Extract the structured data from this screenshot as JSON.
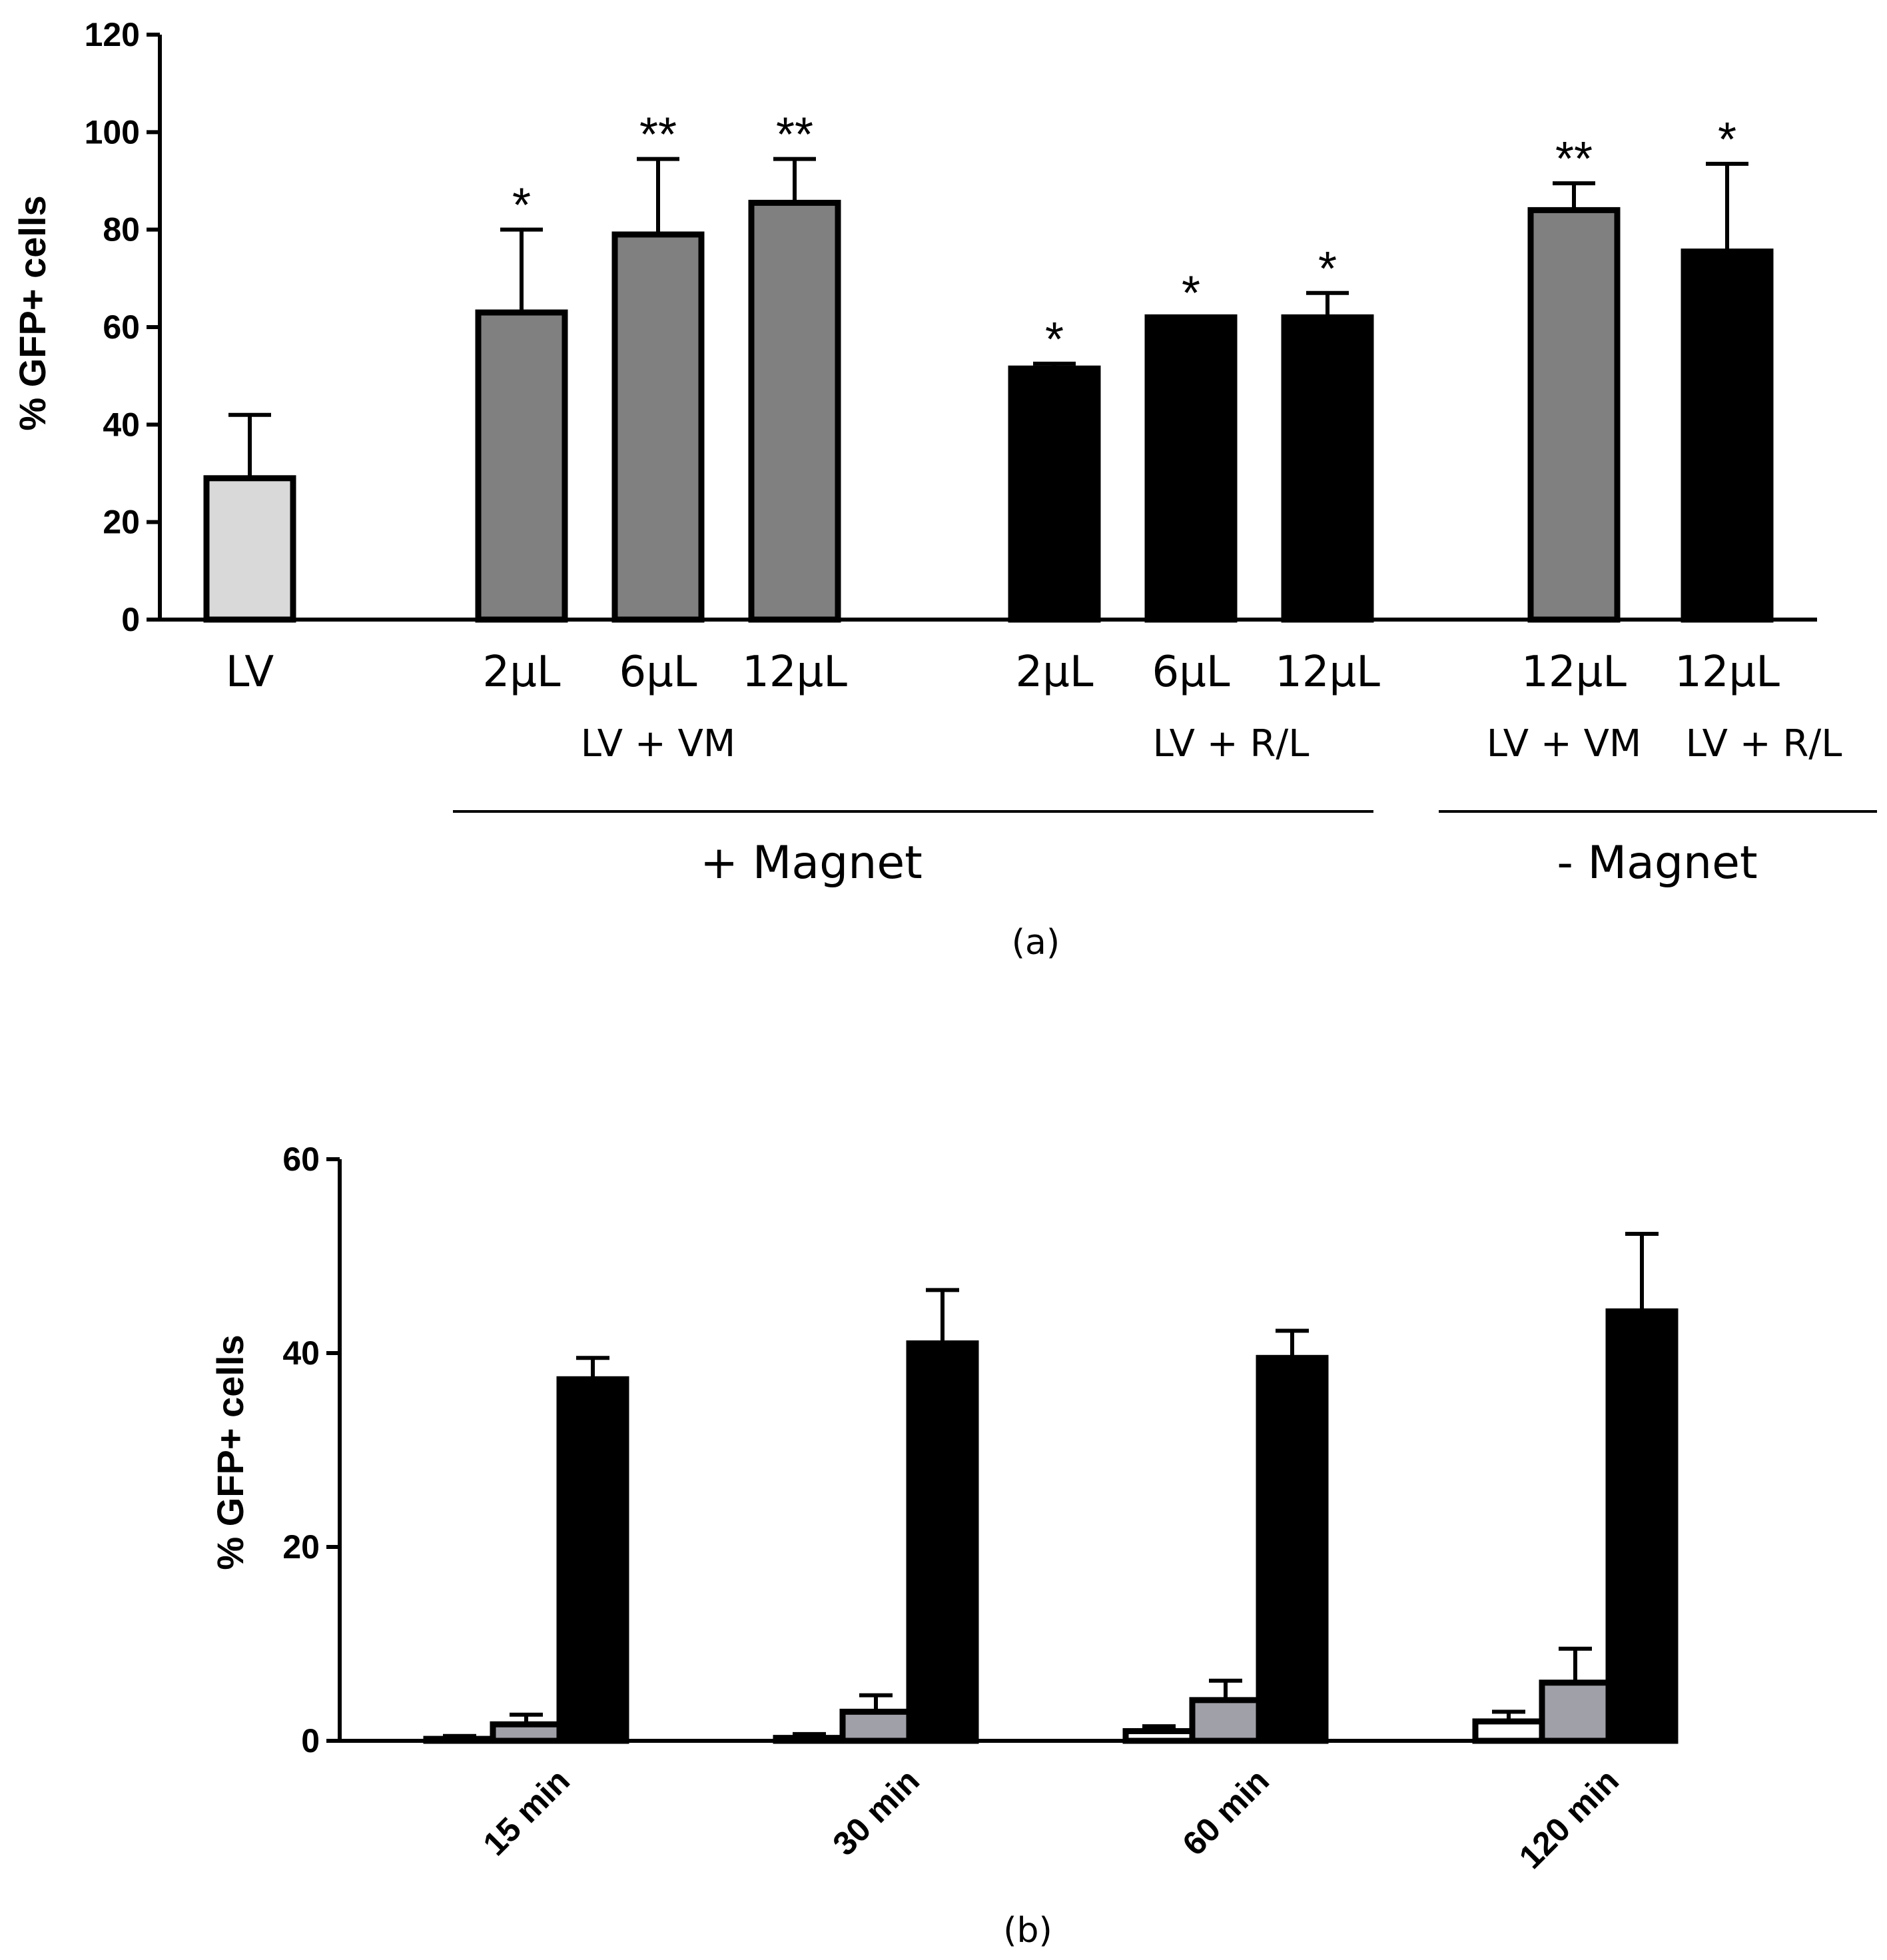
{
  "chart_data": [
    {
      "panel": "(a)",
      "type": "bar",
      "ylabel": "% GFP+ cells",
      "ylim": [
        0,
        120
      ],
      "yticks": [
        "0",
        "20",
        "40",
        "60",
        "80",
        "100",
        "120"
      ],
      "bars": [
        {
          "label": "LV",
          "value": 29,
          "error": 13,
          "color": "#d9d9d9",
          "sig": ""
        },
        {
          "label": "2µL",
          "value": 63,
          "error": 17,
          "color": "#808080",
          "sig": "*"
        },
        {
          "label": "6µL",
          "value": 79,
          "error": 15.5,
          "color": "#808080",
          "sig": "**"
        },
        {
          "label": "12µL",
          "value": 85.5,
          "error": 9,
          "color": "#808080",
          "sig": "**"
        },
        {
          "label": "2µL",
          "value": 51.5,
          "error": 1,
          "color": "#000000",
          "sig": "*"
        },
        {
          "label": "6µL",
          "value": 62,
          "error": 0,
          "color": "#000000",
          "sig": "*"
        },
        {
          "label": "12µL",
          "value": 62,
          "error": 5,
          "color": "#000000",
          "sig": "*"
        },
        {
          "label": "12µL",
          "value": 84,
          "error": 5.5,
          "color": "#808080",
          "sig": "**"
        },
        {
          "label": "12µL",
          "value": 75.5,
          "error": 18,
          "color": "#000000",
          "sig": "*"
        }
      ],
      "groups": [
        {
          "label": "LV + VM"
        },
        {
          "label": "LV + R/L"
        },
        {
          "label": "LV + VM"
        },
        {
          "label": "LV + R/L"
        }
      ],
      "conditions": [
        "+ Magnet",
        "- Magnet"
      ]
    },
    {
      "panel": "(b)",
      "type": "bar",
      "ylabel": "% GFP+ cells",
      "ylim": [
        0,
        60
      ],
      "yticks": [
        "0",
        "20",
        "40",
        "60"
      ],
      "categories": [
        "15 min",
        "30 min",
        "60 min",
        "120 min"
      ],
      "series": [
        {
          "name": "white",
          "color": "#ffffff",
          "values": [
            0.2,
            0.3,
            1,
            2
          ],
          "errors": [
            0.3,
            0.4,
            0.5,
            1
          ]
        },
        {
          "name": "gray",
          "color": "#a0a0a8",
          "values": [
            1.7,
            3,
            4.2,
            6
          ],
          "errors": [
            1,
            1.7,
            2,
            3.5
          ]
        },
        {
          "name": "black",
          "color": "#000000",
          "values": [
            37.3,
            41,
            39.5,
            44.3
          ],
          "errors": [
            2.2,
            5.5,
            2.8,
            8
          ]
        }
      ]
    }
  ],
  "captions": {
    "a": "(a)",
    "b": "(b)"
  }
}
